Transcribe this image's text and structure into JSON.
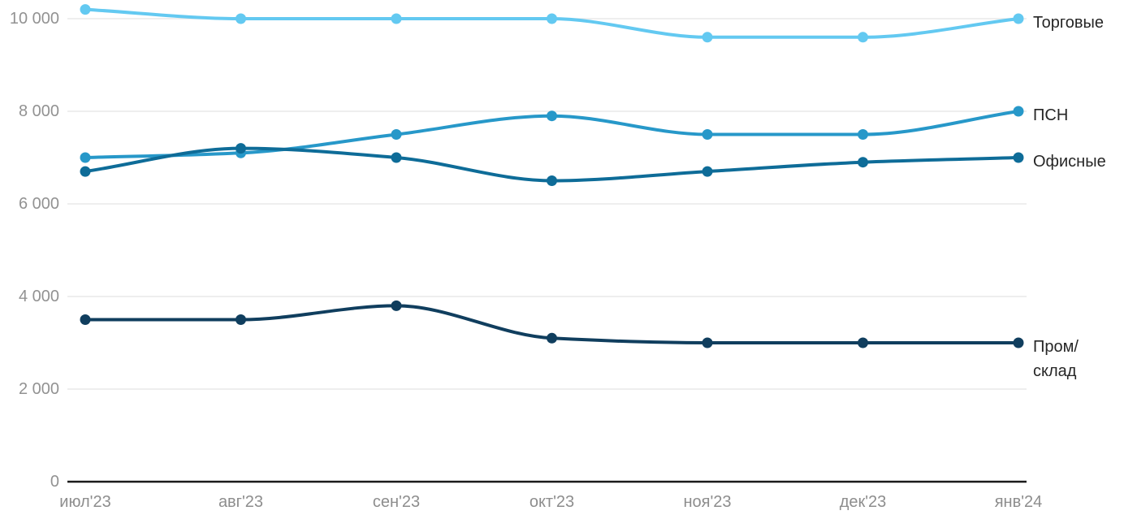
{
  "chart_data": {
    "type": "line",
    "title": "",
    "xlabel": "",
    "ylabel": "",
    "categories": [
      "июл'23",
      "авг'23",
      "сен'23",
      "окт'23",
      "ноя'23",
      "дек'23",
      "янв'24"
    ],
    "series": [
      {
        "id": "retail",
        "name": "Торговые",
        "label_lines": [
          "Торговые"
        ],
        "color": "#63C9F1",
        "values": [
          10200,
          10000,
          10000,
          10000,
          9600,
          9600,
          10000
        ]
      },
      {
        "id": "psn",
        "name": "ПСН",
        "label_lines": [
          "ПСН"
        ],
        "color": "#2798C9",
        "values": [
          7000,
          7100,
          7500,
          7900,
          7500,
          7500,
          8000
        ]
      },
      {
        "id": "office",
        "name": "Офисные",
        "label_lines": [
          "Офисные"
        ],
        "color": "#0E6C98",
        "values": [
          6700,
          7200,
          7000,
          6500,
          6700,
          6900,
          7000
        ]
      },
      {
        "id": "industrial",
        "name": "Пром/склад",
        "label_lines": [
          "Пром/",
          "склад"
        ],
        "color": "#103E5E",
        "values": [
          3500,
          3500,
          3800,
          3100,
          3000,
          3000,
          3000
        ]
      }
    ],
    "y_ticks": [
      {
        "value": 0,
        "label": "0"
      },
      {
        "value": 2000,
        "label": "2 000"
      },
      {
        "value": 4000,
        "label": "4 000"
      },
      {
        "value": 6000,
        "label": "6 000"
      },
      {
        "value": 8000,
        "label": "8 000"
      },
      {
        "value": 10000,
        "label": "10 000"
      }
    ],
    "ylim": [
      0,
      10400
    ],
    "grid": true,
    "line_shape": "smooth-monotone",
    "markers": true,
    "legend_position": "right-of-line-ends"
  },
  "styles": {
    "background": "#FFFFFF",
    "grid_color": "#E8E8E8",
    "axis_color": "#1A1A1A",
    "ytick_color": "#929292",
    "xtick_color": "#8D8D8D",
    "series_label_color": "#262626"
  }
}
